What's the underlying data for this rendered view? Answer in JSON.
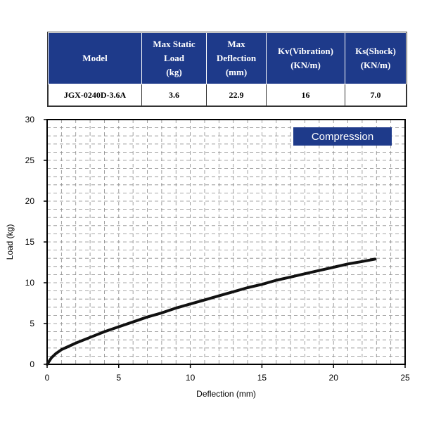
{
  "spec_table": {
    "headers": [
      "Model",
      "Max Static Load (kg)",
      "Max Deflection (mm)",
      "Kv(Vibration) (KN/m)",
      "Ks(Shock) (KN/m)"
    ],
    "header_lines": [
      [
        "Model"
      ],
      [
        "Max Static",
        "Load",
        "(kg)"
      ],
      [
        "Max",
        "Deflection",
        "(mm)"
      ],
      [
        "Kv(Vibration)",
        "(KN/m)"
      ],
      [
        "Ks(Shock)",
        "(KN/m)"
      ]
    ],
    "row": [
      "JGX-0240D-3.6A",
      "3.6",
      "22.9",
      "16",
      "7.0"
    ],
    "header_color": "#1e3a8a"
  },
  "chart_data": {
    "type": "line",
    "xlabel": "Deflection (mm)",
    "ylabel": "Load (kg)",
    "xlim": [
      0,
      25
    ],
    "ylim": [
      0,
      30
    ],
    "xticks": [
      0,
      5,
      10,
      15,
      20,
      25
    ],
    "yticks": [
      0,
      5,
      10,
      15,
      20,
      25,
      30
    ],
    "grid": true,
    "legend_position": "top-right",
    "series": [
      {
        "name": "Compression",
        "x": [
          0,
          0.3,
          0.6,
          1,
          1.5,
          2,
          3,
          4,
          5,
          6,
          7,
          8,
          9,
          10,
          11,
          12,
          13,
          14,
          15,
          16,
          17,
          18,
          19,
          20,
          21,
          22,
          22.9
        ],
        "y": [
          0,
          0.8,
          1.3,
          1.8,
          2.2,
          2.6,
          3.3,
          4.0,
          4.6,
          5.2,
          5.8,
          6.3,
          6.9,
          7.4,
          7.9,
          8.4,
          8.9,
          9.4,
          9.8,
          10.3,
          10.7,
          11.1,
          11.5,
          11.9,
          12.3,
          12.6,
          12.9
        ],
        "color": "#111111"
      }
    ],
    "legend_color": "#1e3a8a"
  }
}
